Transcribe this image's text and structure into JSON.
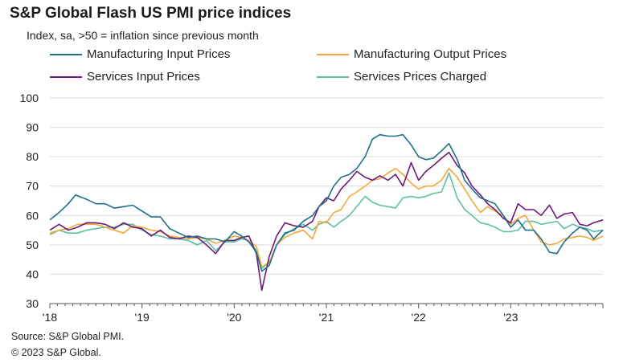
{
  "title": "S&P Global Flash US PMI price indices",
  "subtitle": "Index, sa, >50 = inflation since previous month",
  "source": "Source: S&P Global PMI.",
  "copyright": "© 2023 S&P Global.",
  "chart_data": {
    "type": "line",
    "title": "S&P Global Flash US PMI price indices",
    "xlabel": "",
    "ylabel": "",
    "ylim": [
      30,
      100
    ],
    "yticks": [
      30,
      40,
      50,
      60,
      70,
      80,
      90,
      100
    ],
    "xticks": [
      {
        "label": "'18",
        "x": 2018.0
      },
      {
        "label": "'19",
        "x": 2019.0
      },
      {
        "label": "'20",
        "x": 2020.0
      },
      {
        "label": "'21",
        "x": 2021.0
      },
      {
        "label": "'22",
        "x": 2022.0
      },
      {
        "label": "'23",
        "x": 2023.0
      }
    ],
    "xlim": [
      2018.0,
      2024.0
    ],
    "grid": "horizontal",
    "legend": "top",
    "series": [
      {
        "name": "Manufacturing Input Prices",
        "color": "#1f6f8b",
        "points": [
          [
            2018.0,
            58.5
          ],
          [
            2018.1,
            61
          ],
          [
            2018.2,
            64
          ],
          [
            2018.28,
            67
          ],
          [
            2018.4,
            65.5
          ],
          [
            2018.5,
            64
          ],
          [
            2018.6,
            64
          ],
          [
            2018.7,
            62.5
          ],
          [
            2018.8,
            63
          ],
          [
            2018.9,
            63.5
          ],
          [
            2019.0,
            61.5
          ],
          [
            2019.1,
            59.5
          ],
          [
            2019.2,
            59.5
          ],
          [
            2019.3,
            55.5
          ],
          [
            2019.4,
            54
          ],
          [
            2019.5,
            52.5
          ],
          [
            2019.6,
            53
          ],
          [
            2019.7,
            52
          ],
          [
            2019.8,
            52
          ],
          [
            2019.9,
            51
          ],
          [
            2020.0,
            54.5
          ],
          [
            2020.08,
            53
          ],
          [
            2020.16,
            51
          ],
          [
            2020.24,
            47.5
          ],
          [
            2020.3,
            41
          ],
          [
            2020.38,
            43
          ],
          [
            2020.46,
            50
          ],
          [
            2020.55,
            54
          ],
          [
            2020.65,
            55
          ],
          [
            2020.75,
            58
          ],
          [
            2020.85,
            60
          ],
          [
            2020.92,
            63
          ],
          [
            2021.0,
            65
          ],
          [
            2021.08,
            70
          ],
          [
            2021.16,
            73
          ],
          [
            2021.25,
            74
          ],
          [
            2021.33,
            76
          ],
          [
            2021.42,
            80
          ],
          [
            2021.5,
            86
          ],
          [
            2021.58,
            87.5
          ],
          [
            2021.67,
            87
          ],
          [
            2021.75,
            87
          ],
          [
            2021.83,
            87.5
          ],
          [
            2021.92,
            84
          ],
          [
            2022.0,
            80
          ],
          [
            2022.08,
            79
          ],
          [
            2022.16,
            79.5
          ],
          [
            2022.25,
            82
          ],
          [
            2022.33,
            84.5
          ],
          [
            2022.42,
            79
          ],
          [
            2022.5,
            72
          ],
          [
            2022.58,
            69
          ],
          [
            2022.67,
            66
          ],
          [
            2022.75,
            65
          ],
          [
            2022.83,
            64
          ],
          [
            2022.92,
            60
          ],
          [
            2023.0,
            56
          ],
          [
            2023.08,
            58.5
          ],
          [
            2023.16,
            55
          ],
          [
            2023.25,
            55
          ],
          [
            2023.33,
            52
          ],
          [
            2023.42,
            47.5
          ],
          [
            2023.5,
            47
          ],
          [
            2023.58,
            51
          ],
          [
            2023.67,
            54
          ],
          [
            2023.75,
            56
          ],
          [
            2023.83,
            55
          ],
          [
            2023.9,
            52
          ],
          [
            2024.0,
            55
          ]
        ]
      },
      {
        "name": "Manufacturing Output Prices",
        "color": "#f4a83a",
        "points": [
          [
            2018.0,
            54
          ],
          [
            2018.1,
            55
          ],
          [
            2018.2,
            55.5
          ],
          [
            2018.3,
            57
          ],
          [
            2018.4,
            57
          ],
          [
            2018.5,
            57
          ],
          [
            2018.6,
            56
          ],
          [
            2018.7,
            55
          ],
          [
            2018.8,
            54
          ],
          [
            2018.9,
            56.5
          ],
          [
            2019.0,
            56
          ],
          [
            2019.1,
            55
          ],
          [
            2019.2,
            54.5
          ],
          [
            2019.3,
            53
          ],
          [
            2019.4,
            52.5
          ],
          [
            2019.5,
            52
          ],
          [
            2019.6,
            52.5
          ],
          [
            2019.7,
            52
          ],
          [
            2019.8,
            50.5
          ],
          [
            2019.9,
            51.5
          ],
          [
            2020.0,
            53
          ],
          [
            2020.08,
            52.5
          ],
          [
            2020.16,
            51.5
          ],
          [
            2020.24,
            49.5
          ],
          [
            2020.3,
            42.5
          ],
          [
            2020.38,
            44
          ],
          [
            2020.46,
            50
          ],
          [
            2020.55,
            52.5
          ],
          [
            2020.65,
            54
          ],
          [
            2020.75,
            55
          ],
          [
            2020.85,
            52
          ],
          [
            2020.92,
            58
          ],
          [
            2021.0,
            57.5
          ],
          [
            2021.08,
            61
          ],
          [
            2021.16,
            62
          ],
          [
            2021.25,
            66.5
          ],
          [
            2021.33,
            68
          ],
          [
            2021.42,
            70
          ],
          [
            2021.5,
            72
          ],
          [
            2021.58,
            72.5
          ],
          [
            2021.67,
            74.5
          ],
          [
            2021.75,
            76
          ],
          [
            2021.83,
            74
          ],
          [
            2021.92,
            71
          ],
          [
            2022.0,
            69
          ],
          [
            2022.08,
            70
          ],
          [
            2022.16,
            70
          ],
          [
            2022.25,
            72
          ],
          [
            2022.33,
            76
          ],
          [
            2022.42,
            73
          ],
          [
            2022.5,
            69
          ],
          [
            2022.58,
            65
          ],
          [
            2022.67,
            61
          ],
          [
            2022.75,
            63
          ],
          [
            2022.83,
            61.5
          ],
          [
            2022.92,
            60
          ],
          [
            2023.0,
            57
          ],
          [
            2023.08,
            59
          ],
          [
            2023.16,
            60
          ],
          [
            2023.25,
            55
          ],
          [
            2023.33,
            51
          ],
          [
            2023.42,
            50
          ],
          [
            2023.5,
            50.5
          ],
          [
            2023.58,
            52
          ],
          [
            2023.67,
            52.5
          ],
          [
            2023.75,
            53
          ],
          [
            2023.83,
            52.5
          ],
          [
            2023.9,
            51.5
          ],
          [
            2024.0,
            53
          ]
        ]
      },
      {
        "name": "Services Input Prices",
        "color": "#6a1b7a",
        "points": [
          [
            2018.0,
            55
          ],
          [
            2018.1,
            57
          ],
          [
            2018.2,
            55
          ],
          [
            2018.3,
            56
          ],
          [
            2018.4,
            57.5
          ],
          [
            2018.5,
            57.5
          ],
          [
            2018.6,
            57
          ],
          [
            2018.7,
            55.5
          ],
          [
            2018.8,
            57.5
          ],
          [
            2018.9,
            56
          ],
          [
            2019.0,
            55.5
          ],
          [
            2019.1,
            53
          ],
          [
            2019.2,
            55
          ],
          [
            2019.3,
            52.5
          ],
          [
            2019.4,
            52
          ],
          [
            2019.5,
            53
          ],
          [
            2019.6,
            52.5
          ],
          [
            2019.7,
            50
          ],
          [
            2019.8,
            47
          ],
          [
            2019.9,
            51.5
          ],
          [
            2020.0,
            51.5
          ],
          [
            2020.08,
            52.5
          ],
          [
            2020.16,
            53
          ],
          [
            2020.24,
            47
          ],
          [
            2020.3,
            34.5
          ],
          [
            2020.38,
            46
          ],
          [
            2020.46,
            53
          ],
          [
            2020.55,
            57.5
          ],
          [
            2020.65,
            56.5
          ],
          [
            2020.75,
            56
          ],
          [
            2020.85,
            58
          ],
          [
            2020.92,
            63
          ],
          [
            2021.0,
            66
          ],
          [
            2021.08,
            65
          ],
          [
            2021.16,
            69
          ],
          [
            2021.25,
            72
          ],
          [
            2021.33,
            75
          ],
          [
            2021.42,
            73
          ],
          [
            2021.5,
            72
          ],
          [
            2021.58,
            73.5
          ],
          [
            2021.67,
            72
          ],
          [
            2021.75,
            74
          ],
          [
            2021.83,
            70
          ],
          [
            2021.92,
            78
          ],
          [
            2022.0,
            72
          ],
          [
            2022.08,
            75
          ],
          [
            2022.16,
            77
          ],
          [
            2022.25,
            79.5
          ],
          [
            2022.33,
            81.5
          ],
          [
            2022.42,
            77
          ],
          [
            2022.5,
            74.5
          ],
          [
            2022.58,
            70
          ],
          [
            2022.67,
            67
          ],
          [
            2022.75,
            64
          ],
          [
            2022.83,
            62
          ],
          [
            2022.92,
            59
          ],
          [
            2023.0,
            57.5
          ],
          [
            2023.08,
            64
          ],
          [
            2023.16,
            62
          ],
          [
            2023.25,
            62
          ],
          [
            2023.33,
            60
          ],
          [
            2023.42,
            63.5
          ],
          [
            2023.5,
            59
          ],
          [
            2023.58,
            60.5
          ],
          [
            2023.67,
            61
          ],
          [
            2023.75,
            57
          ],
          [
            2023.83,
            56.5
          ],
          [
            2023.9,
            57.5
          ],
          [
            2024.0,
            58.5
          ]
        ]
      },
      {
        "name": "Services Prices Charged",
        "color": "#5bc0a8",
        "points": [
          [
            2018.0,
            53.5
          ],
          [
            2018.1,
            55
          ],
          [
            2018.2,
            54
          ],
          [
            2018.3,
            54
          ],
          [
            2018.4,
            55
          ],
          [
            2018.5,
            55.5
          ],
          [
            2018.6,
            56
          ],
          [
            2018.7,
            56
          ],
          [
            2018.8,
            57
          ],
          [
            2018.9,
            57
          ],
          [
            2019.0,
            55
          ],
          [
            2019.1,
            53.5
          ],
          [
            2019.2,
            53
          ],
          [
            2019.3,
            52
          ],
          [
            2019.4,
            52
          ],
          [
            2019.5,
            51.5
          ],
          [
            2019.6,
            50
          ],
          [
            2019.7,
            51.5
          ],
          [
            2019.8,
            48
          ],
          [
            2019.9,
            51
          ],
          [
            2020.0,
            51
          ],
          [
            2020.08,
            52
          ],
          [
            2020.16,
            51.5
          ],
          [
            2020.24,
            48
          ],
          [
            2020.3,
            42
          ],
          [
            2020.38,
            44
          ],
          [
            2020.46,
            50
          ],
          [
            2020.55,
            53.5
          ],
          [
            2020.65,
            55.5
          ],
          [
            2020.75,
            57
          ],
          [
            2020.85,
            55
          ],
          [
            2020.92,
            57
          ],
          [
            2021.0,
            58
          ],
          [
            2021.08,
            56
          ],
          [
            2021.16,
            58
          ],
          [
            2021.25,
            60
          ],
          [
            2021.33,
            63
          ],
          [
            2021.42,
            66.5
          ],
          [
            2021.5,
            64.5
          ],
          [
            2021.58,
            63.5
          ],
          [
            2021.67,
            63
          ],
          [
            2021.75,
            62.5
          ],
          [
            2021.83,
            66
          ],
          [
            2021.92,
            66.5
          ],
          [
            2022.0,
            66
          ],
          [
            2022.08,
            66.5
          ],
          [
            2022.16,
            67.5
          ],
          [
            2022.25,
            68
          ],
          [
            2022.33,
            74.5
          ],
          [
            2022.42,
            66
          ],
          [
            2022.5,
            62
          ],
          [
            2022.58,
            60
          ],
          [
            2022.67,
            57.5
          ],
          [
            2022.75,
            57
          ],
          [
            2022.83,
            56
          ],
          [
            2022.92,
            54.5
          ],
          [
            2023.0,
            54.5
          ],
          [
            2023.08,
            55
          ],
          [
            2023.16,
            58
          ],
          [
            2023.25,
            58
          ],
          [
            2023.33,
            57
          ],
          [
            2023.42,
            57.5
          ],
          [
            2023.5,
            58
          ],
          [
            2023.58,
            55.5
          ],
          [
            2023.67,
            57
          ],
          [
            2023.75,
            56
          ],
          [
            2023.83,
            55.5
          ],
          [
            2023.9,
            54.5
          ],
          [
            2024.0,
            55
          ]
        ]
      }
    ]
  }
}
